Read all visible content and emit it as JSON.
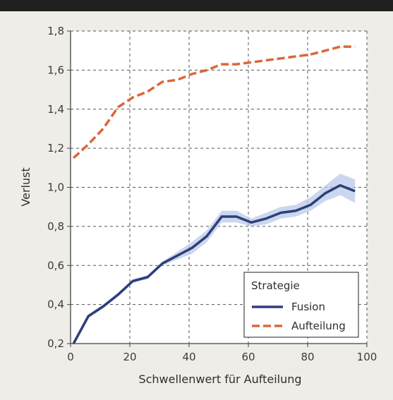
{
  "chart_data": {
    "type": "line",
    "xlabel": "Schwellenwert für Aufteilung",
    "ylabel": "Verlust",
    "xlim": [
      0,
      100
    ],
    "ylim": [
      0.2,
      1.8
    ],
    "xticks": [
      "0",
      "20",
      "40",
      "60",
      "80",
      "100"
    ],
    "yticks": [
      "0,2",
      "0,4",
      "0,6",
      "0,8",
      "1,0",
      "1,2",
      "1,4",
      "1,6",
      "1,8"
    ],
    "grid": true,
    "legend": {
      "title": "Strategie",
      "position": "bottom-right"
    },
    "series": [
      {
        "name": "Fusion",
        "color": "#2e3f78",
        "band_color": "#b9c9ea",
        "line_style": "solid",
        "x": [
          1,
          6,
          11,
          16,
          21,
          26,
          31,
          36,
          41,
          46,
          51,
          56,
          61,
          66,
          71,
          76,
          81,
          86,
          91,
          96
        ],
        "y": [
          0.2,
          0.34,
          0.39,
          0.45,
          0.52,
          0.54,
          0.61,
          0.65,
          0.69,
          0.75,
          0.85,
          0.85,
          0.82,
          0.84,
          0.87,
          0.88,
          0.91,
          0.97,
          1.01,
          0.98
        ],
        "y_low": [
          0.19,
          0.33,
          0.38,
          0.44,
          0.51,
          0.53,
          0.6,
          0.63,
          0.66,
          0.72,
          0.82,
          0.82,
          0.8,
          0.81,
          0.84,
          0.85,
          0.88,
          0.93,
          0.96,
          0.92
        ],
        "y_high": [
          0.21,
          0.35,
          0.4,
          0.46,
          0.53,
          0.55,
          0.62,
          0.67,
          0.72,
          0.78,
          0.88,
          0.88,
          0.84,
          0.87,
          0.9,
          0.91,
          0.95,
          1.01,
          1.07,
          1.04
        ]
      },
      {
        "name": "Aufteilung",
        "color": "#d9683a",
        "line_style": "dashed",
        "x": [
          1,
          6,
          11,
          16,
          21,
          26,
          31,
          36,
          41,
          46,
          51,
          56,
          61,
          66,
          71,
          76,
          81,
          86,
          91,
          96
        ],
        "y": [
          1.15,
          1.22,
          1.3,
          1.41,
          1.46,
          1.49,
          1.54,
          1.55,
          1.58,
          1.6,
          1.63,
          1.63,
          1.64,
          1.65,
          1.66,
          1.67,
          1.68,
          1.7,
          1.72,
          1.72
        ]
      }
    ]
  }
}
